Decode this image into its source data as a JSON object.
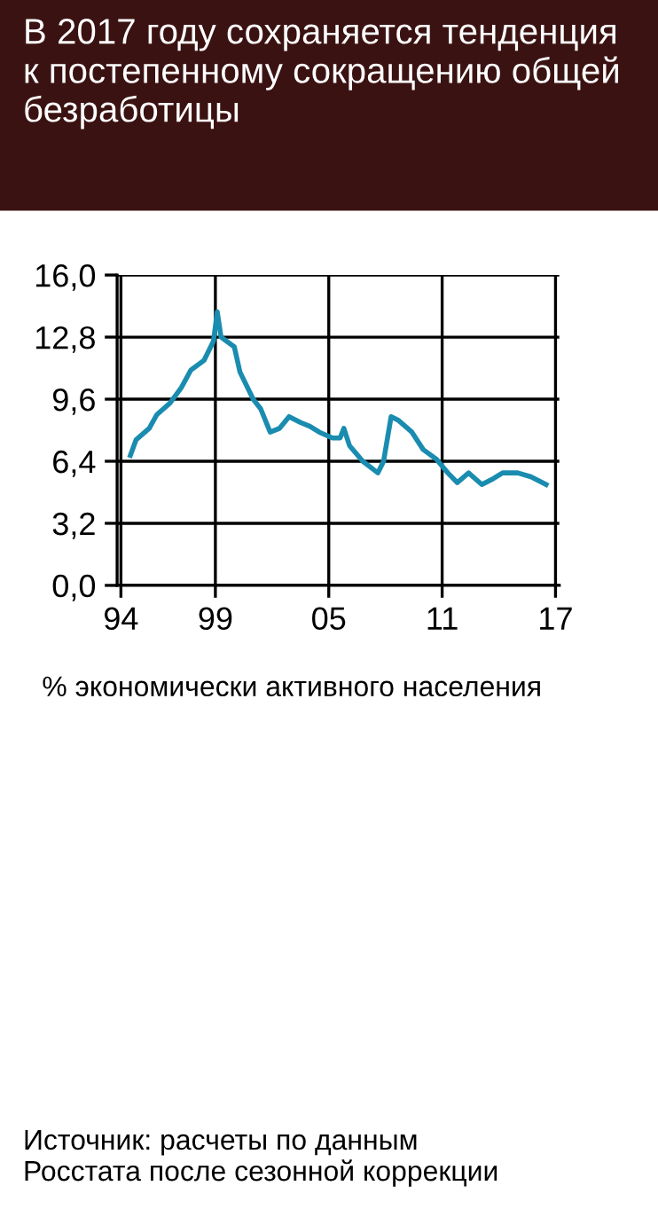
{
  "chart_data": {
    "type": "line",
    "title": "В 2017 году сохраняется тенденция\nк постепенному сокращению общей\nбезработицы",
    "xlabel": "% экономически активного населения",
    "annotations": [
      "Источник: расчеты по данным\nРосстата после сезонной коррекции"
    ],
    "x": [
      1994.5,
      1994.8,
      1995.5,
      1995.9,
      1996.6,
      1997.2,
      1997.7,
      1998.4,
      1998.9,
      1999.1,
      1999.3,
      2000.0,
      2000.3,
      2001.0,
      2001.4,
      2001.9,
      2002.4,
      2002.9,
      2003.5,
      2004.0,
      2004.5,
      2005.2,
      2005.6,
      2005.8,
      2006.1,
      2006.8,
      2007.6,
      2007.9,
      2008.3,
      2008.7,
      2009.4,
      2010.0,
      2010.7,
      2011.3,
      2011.8,
      2012.4,
      2013.1,
      2013.7,
      2014.2,
      2015.0,
      2015.7,
      2016.5
    ],
    "series": [
      {
        "color": "#1a8cb0",
        "values": [
          6.7,
          7.5,
          8.1,
          8.8,
          9.4,
          10.2,
          11.1,
          11.6,
          12.6,
          14.1,
          12.8,
          12.3,
          11.0,
          9.6,
          9.1,
          7.9,
          8.1,
          8.7,
          8.4,
          8.2,
          7.9,
          7.6,
          7.6,
          8.1,
          7.2,
          6.4,
          5.8,
          6.4,
          8.7,
          8.5,
          7.9,
          7.0,
          6.5,
          5.8,
          5.3,
          5.8,
          5.2,
          5.5,
          5.8,
          5.8,
          5.6,
          5.2
        ]
      }
    ],
    "xlim": [
      1993.8,
      2017.2
    ],
    "xticks": [
      {
        "value": 1994,
        "label": "94"
      },
      {
        "value": 1999,
        "label": "99"
      },
      {
        "value": 2005,
        "label": "05"
      },
      {
        "value": 2011,
        "label": "11"
      },
      {
        "value": 2017,
        "label": "17"
      }
    ],
    "ylim": [
      0,
      16
    ],
    "yticks": [
      {
        "value": 0,
        "label": "0,0"
      },
      {
        "value": 3.2,
        "label": "3,2"
      },
      {
        "value": 6.4,
        "label": "6,4"
      },
      {
        "value": 9.6,
        "label": "9,6"
      },
      {
        "value": 12.8,
        "label": "12,8"
      },
      {
        "value": 16,
        "label": "16,0"
      }
    ],
    "grid": true,
    "line_style": "solid"
  }
}
